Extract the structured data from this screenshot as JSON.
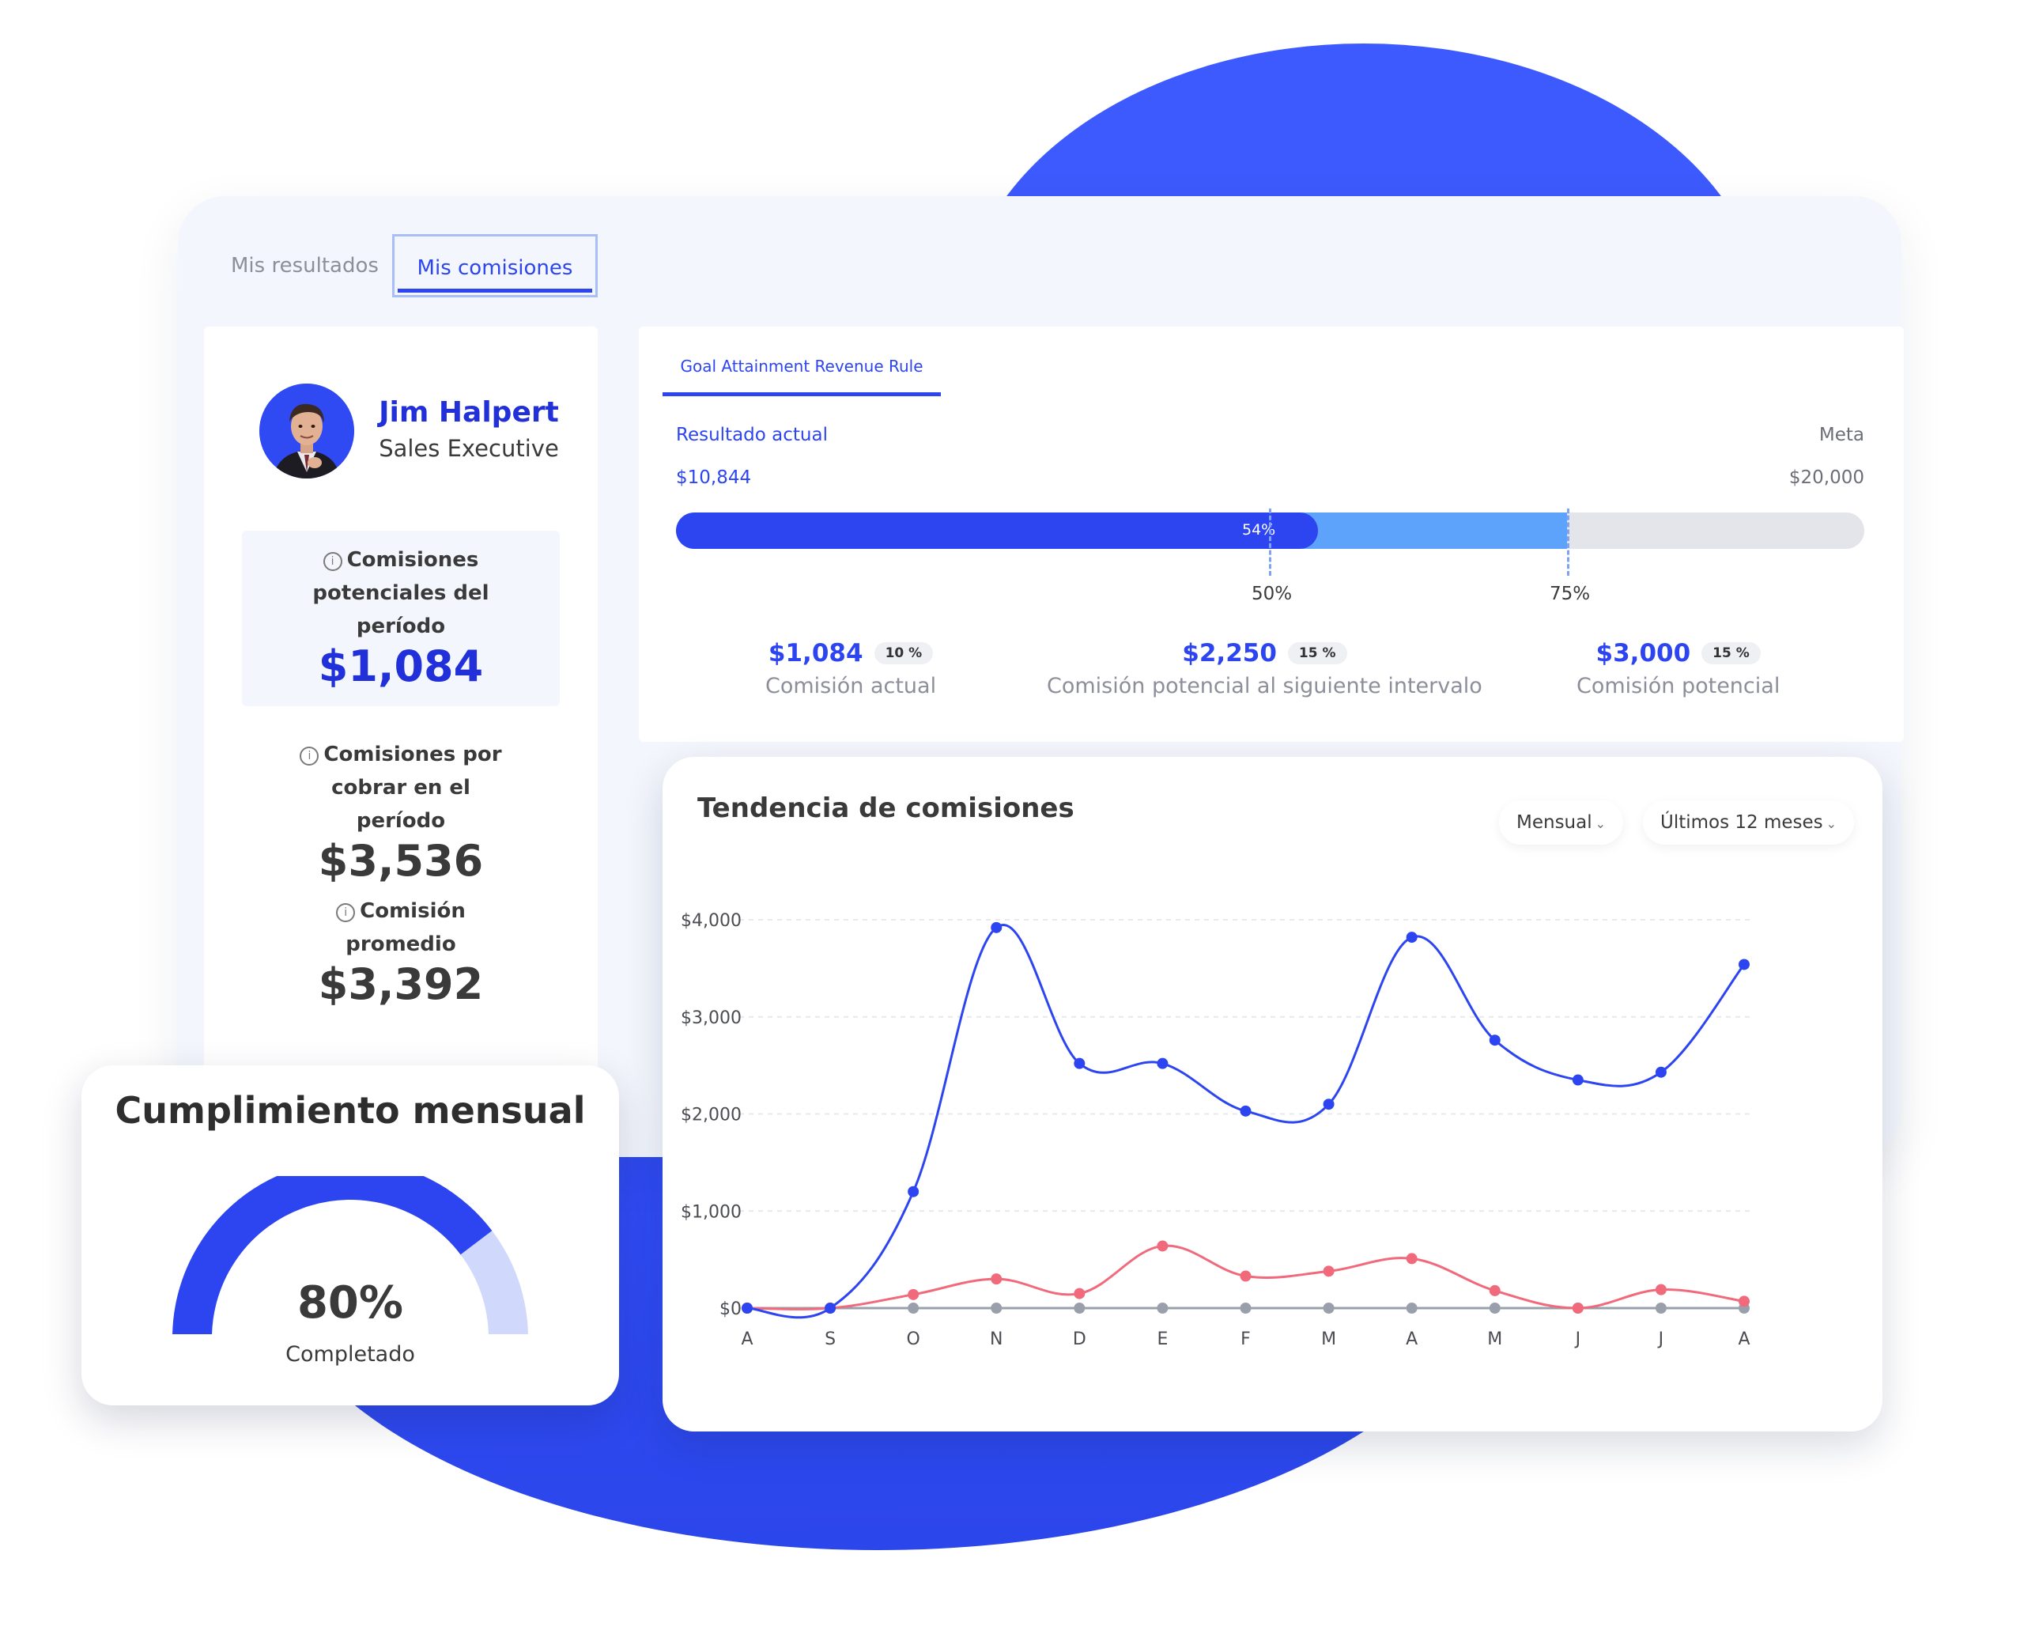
{
  "tabs": [
    {
      "label": "Mis resultados"
    },
    {
      "label": "Mis comisiones"
    }
  ],
  "profile": {
    "name": "Jim Halpert",
    "role": "Sales Executive",
    "metrics": [
      {
        "label": "Comisiones potenciales del período",
        "value": "$1,084"
      },
      {
        "label": "Comisiones por cobrar en el período",
        "value": "$3,536"
      },
      {
        "label": "Comisión promedio",
        "value": "$3,392"
      }
    ]
  },
  "goal": {
    "tab_label": "Goal Attainment Revenue Rule",
    "current_label": "Resultado actual",
    "current_value": "$10,844",
    "target_label": "Meta",
    "target_value": "$20,000",
    "progress_percent": 54,
    "progress_label": "54%",
    "tier_markers": [
      {
        "percent": 50,
        "label": "50%"
      },
      {
        "percent": 75,
        "label": "75%"
      }
    ],
    "tiers": [
      {
        "value": "$1,084",
        "badge": "10 %",
        "label": "Comisión actual"
      },
      {
        "value": "$2,250",
        "badge": "15 %",
        "label": "Comisión potencial al siguiente intervalo"
      },
      {
        "value": "$3,000",
        "badge": "15 %",
        "label": "Comisión potencial"
      }
    ]
  },
  "trend": {
    "title": "Tendencia de comisiones",
    "period_select": "Mensual",
    "range_select": "Últimos 12 meses"
  },
  "gauge": {
    "title": "Cumplimiento mensual",
    "value_label": "80%",
    "percent": 80,
    "subtitle": "Completado"
  },
  "colors": {
    "accent": "#2d45f0",
    "accent_light": "#5ea3fb",
    "pink_series": "#f06a7c",
    "gray_series": "#9aa0ab",
    "gauge_rest": "#d0d8fc"
  },
  "chart_data": {
    "type": "line",
    "categories": [
      "A",
      "S",
      "O",
      "N",
      "D",
      "E",
      "F",
      "M",
      "A",
      "M",
      "J",
      "J",
      "A"
    ],
    "ylim": [
      0,
      4000
    ],
    "yticks": [
      "$0",
      "$1,000",
      "$2,000",
      "$3,000",
      "$4,000"
    ],
    "ytick_values": [
      0,
      1000,
      2000,
      3000,
      4000
    ],
    "grid": true,
    "series": [
      {
        "color": "#2d45f0",
        "values": [
          0,
          0,
          1200,
          3920,
          2520,
          2520,
          2030,
          2100,
          3820,
          2760,
          2350,
          2430,
          3540
        ]
      },
      {
        "color": "#f06a7c",
        "values": [
          0,
          0,
          140,
          300,
          150,
          640,
          330,
          380,
          510,
          180,
          0,
          190,
          70
        ]
      },
      {
        "color": "#9aa0ab",
        "values": [
          0,
          0,
          0,
          0,
          0,
          0,
          0,
          0,
          0,
          0,
          0,
          0,
          0
        ]
      }
    ]
  }
}
